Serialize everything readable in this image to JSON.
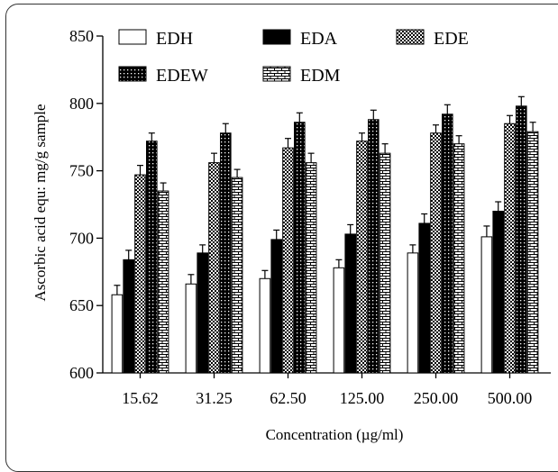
{
  "chart_data": {
    "type": "bar",
    "xlabel": "Concentration (µg/ml)",
    "ylabel": "Ascorbic acid equ: mg/g sample",
    "ylim": [
      600,
      850
    ],
    "yticks": [
      "600",
      "650",
      "700",
      "750",
      "800",
      "850"
    ],
    "categories": [
      "15.62",
      "31.25",
      "62.50",
      "125.00",
      "250.00",
      "500.00"
    ],
    "legend_placement": "top-left",
    "grid": false,
    "series": [
      {
        "name": "EDH",
        "pattern": "white",
        "values": [
          658,
          666,
          670,
          678,
          689,
          701
        ],
        "errors": [
          7,
          7,
          6,
          6,
          6,
          8
        ]
      },
      {
        "name": "EDA",
        "pattern": "black",
        "values": [
          684,
          689,
          699,
          703,
          711,
          720
        ],
        "errors": [
          7,
          6,
          7,
          7,
          7,
          7
        ]
      },
      {
        "name": "EDE",
        "pattern": "checker",
        "values": [
          747,
          756,
          767,
          772,
          778,
          785
        ],
        "errors": [
          7,
          7,
          7,
          6,
          6,
          6
        ]
      },
      {
        "name": "EDEW",
        "pattern": "dots",
        "values": [
          772,
          778,
          786,
          788,
          792,
          798
        ],
        "errors": [
          6,
          7,
          7,
          7,
          7,
          7
        ]
      },
      {
        "name": "EDM",
        "pattern": "brick",
        "values": [
          735,
          745,
          756,
          763,
          770,
          779
        ],
        "errors": [
          6,
          6,
          7,
          7,
          6,
          7
        ]
      }
    ]
  }
}
